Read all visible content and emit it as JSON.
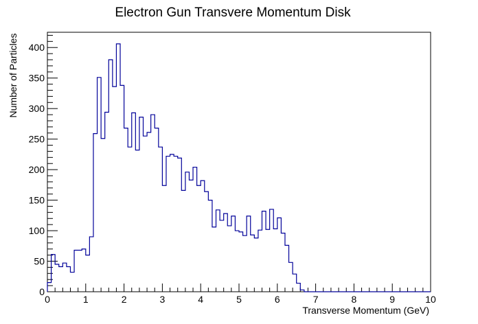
{
  "chart_data": {
    "type": "bar",
    "title": "Electron Gun Transvere Momentum Disk",
    "xlabel": "Transverse Momentum (GeV)",
    "ylabel": "Number of Particles",
    "xlim": [
      0,
      10
    ],
    "ylim": [
      0,
      425
    ],
    "x_ticks": [
      "0",
      "1",
      "2",
      "3",
      "4",
      "5",
      "6",
      "7",
      "8",
      "9",
      "10"
    ],
    "y_ticks": [
      "0",
      "50",
      "100",
      "150",
      "200",
      "250",
      "300",
      "350",
      "400"
    ],
    "bin_width": 0.1,
    "grid": false,
    "line_color": "#000099",
    "values": [
      15,
      61,
      45,
      41,
      47,
      41,
      32,
      68,
      68,
      70,
      60,
      90,
      259,
      351,
      251,
      294,
      380,
      336,
      406,
      338,
      268,
      237,
      293,
      232,
      286,
      255,
      261,
      290,
      268,
      237,
      174,
      222,
      225,
      222,
      219,
      166,
      196,
      183,
      204,
      174,
      182,
      164,
      150,
      106,
      134,
      117,
      128,
      108,
      124,
      100,
      98,
      92,
      124,
      93,
      88,
      101,
      132,
      102,
      135,
      103,
      121,
      96,
      76,
      48,
      29,
      14,
      3,
      0,
      0,
      0,
      0,
      0,
      0,
      0,
      0,
      0,
      0,
      0,
      0,
      0,
      0,
      0,
      0,
      0,
      0,
      0,
      0,
      0,
      0,
      0,
      0,
      0,
      0,
      0,
      0,
      0,
      0,
      0,
      0,
      0
    ]
  }
}
